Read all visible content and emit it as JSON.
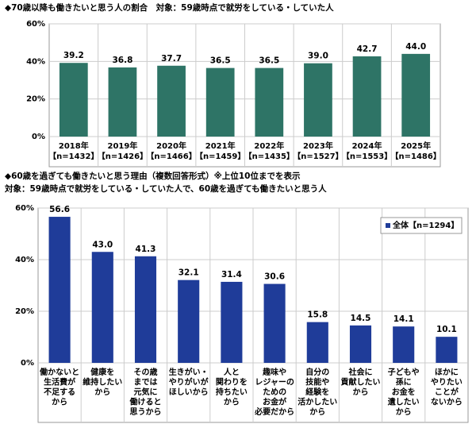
{
  "chart_data": [
    {
      "type": "bar",
      "title": "◆70歳以降も働きたいと思う人の割合　対象：59歳時点で就労をしている・していた人",
      "categories": [
        [
          "2018年",
          "【n=1432】"
        ],
        [
          "2019年",
          "【n=1426】"
        ],
        [
          "2020年",
          "【n=1466】"
        ],
        [
          "2021年",
          "【n=1459】"
        ],
        [
          "2022年",
          "【n=1435】"
        ],
        [
          "2023年",
          "【n=1527】"
        ],
        [
          "2024年",
          "【n=1553】"
        ],
        [
          "2025年",
          "【n=1486】"
        ]
      ],
      "values": [
        39.2,
        36.8,
        37.7,
        36.5,
        36.5,
        39.0,
        42.7,
        44.0
      ],
      "value_labels": [
        "39.2",
        "36.8",
        "37.7",
        "36.5",
        "36.5",
        "39.0",
        "42.7",
        "44.0"
      ],
      "color": "#2e7466",
      "ylim": [
        0,
        60
      ],
      "yticks": [
        {
          "value": 0,
          "label": "0%"
        },
        {
          "value": 20,
          "label": "20%"
        },
        {
          "value": 40,
          "label": "40%"
        },
        {
          "value": 60,
          "label": "60%"
        }
      ],
      "grid": true
    },
    {
      "type": "bar",
      "title": "◆60歳を過ぎても働きたいと思う理由（複数回答形式）※上位10位までを表示",
      "subtitle": "対象：59歳時点で就労をしている・していた人で、60歳を過ぎても働きたいと思う人",
      "categories": [
        [
          "働かないと",
          "生活費が",
          "不足する",
          "から"
        ],
        [
          "健康を",
          "維持したい",
          "から"
        ],
        [
          "その歳",
          "までは",
          "元気に",
          "働けると",
          "思うから"
        ],
        [
          "生きがい・",
          "やりがいが",
          "ほしいから"
        ],
        [
          "人と",
          "関わりを",
          "持ちたい",
          "から"
        ],
        [
          "趣味や",
          "レジャーの",
          "ための",
          "お金が",
          "必要だから"
        ],
        [
          "自分の",
          "技能や",
          "経験を",
          "活かしたい",
          "から"
        ],
        [
          "社会に",
          "貢献したい",
          "から"
        ],
        [
          "子どもや",
          "孫に",
          "お金を",
          "遺したい",
          "から"
        ],
        [
          "ほかに",
          "やりたい",
          "ことが",
          "ないから"
        ]
      ],
      "series": [
        {
          "name": "全体【n=1294】",
          "color": "#1f3c99",
          "values": [
            56.6,
            43.0,
            41.3,
            32.1,
            31.4,
            30.6,
            15.8,
            14.5,
            14.1,
            10.1
          ],
          "value_labels": [
            "56.6",
            "43.0",
            "41.3",
            "32.1",
            "31.4",
            "30.6",
            "15.8",
            "14.5",
            "14.1",
            "10.1"
          ]
        }
      ],
      "legend": "upper right",
      "ylim": [
        0,
        60
      ],
      "yticks": [
        {
          "value": 0,
          "label": "0%"
        },
        {
          "value": 20,
          "label": "20%"
        },
        {
          "value": 40,
          "label": "40%"
        },
        {
          "value": 60,
          "label": "60%"
        }
      ],
      "grid": true
    }
  ]
}
